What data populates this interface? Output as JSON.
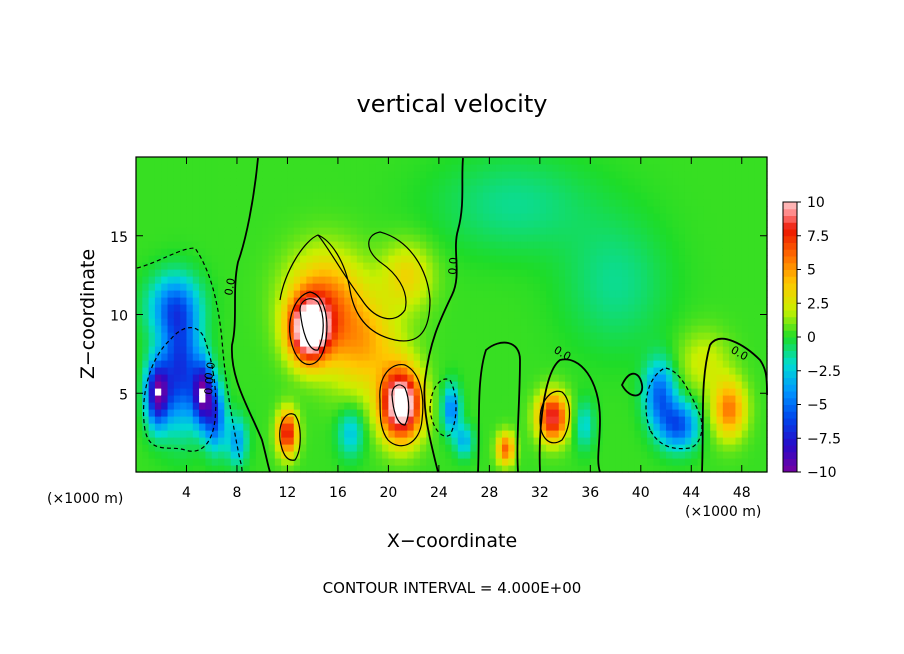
{
  "title": "vertical velocity",
  "footer": "CONTOUR INTERVAL = 4.000E+00",
  "chart_data": {
    "type": "heatmap",
    "title": "vertical velocity",
    "xlabel": "X−coordinate",
    "ylabel": "Z−coordinate",
    "x_unit_left": "(×1000 m)",
    "x_unit_right": "(×1000 m)",
    "xlim": [
      0,
      50
    ],
    "ylim": [
      0,
      20
    ],
    "xticks": [
      4,
      8,
      12,
      16,
      20,
      24,
      28,
      32,
      36,
      40,
      44,
      48
    ],
    "xtick_labels": [
      "4",
      "8",
      "12",
      "16",
      "20",
      "24",
      "28",
      "32",
      "36",
      "40",
      "44",
      "48"
    ],
    "yticks": [
      5,
      10,
      15
    ],
    "ytick_labels": [
      "5",
      "10",
      "15"
    ],
    "colorbar": {
      "min": -10,
      "max": 10,
      "ticks": [
        10,
        7.5,
        5,
        2.5,
        0,
        -2.5,
        -5,
        -7.5,
        -10
      ],
      "tick_labels": [
        "10",
        "7.5",
        "5",
        "2.5",
        "0",
        "−2.5",
        "−5",
        "−7.5",
        "−10"
      ]
    },
    "contour_interval": 4.0,
    "contour_labels": [
      "0.0",
      "0.0",
      "0.0",
      "0.0",
      "0.0",
      "0.0"
    ],
    "features": [
      {
        "x": 1.7,
        "z": 5.0,
        "w": -9.5,
        "sx": 0.9,
        "sz": 2.0
      },
      {
        "x": 3.5,
        "z": 6.5,
        "w": -7.0,
        "sx": 1.5,
        "sz": 3.5
      },
      {
        "x": 5.3,
        "z": 5.0,
        "w": -9.0,
        "sx": 0.8,
        "sz": 2.0
      },
      {
        "x": 6.3,
        "z": 3.5,
        "w": -6.0,
        "sx": 0.8,
        "sz": 2.0
      },
      {
        "x": 3.0,
        "z": 10.5,
        "w": -5.0,
        "sx": 2.0,
        "sz": 2.0
      },
      {
        "x": 8.0,
        "z": 2.0,
        "w": -4.0,
        "sx": 0.8,
        "sz": 1.5
      },
      {
        "x": 12.0,
        "z": 2.5,
        "w": 8.0,
        "sx": 0.8,
        "sz": 1.4
      },
      {
        "x": 13.7,
        "z": 9.0,
        "w": 11.0,
        "sx": 1.6,
        "sz": 2.0
      },
      {
        "x": 15.0,
        "z": 11.0,
        "w": 5.0,
        "sx": 3.0,
        "sz": 3.0
      },
      {
        "x": 18.0,
        "z": 8.0,
        "w": 4.0,
        "sx": 3.0,
        "sz": 3.0
      },
      {
        "x": 21.0,
        "z": 4.3,
        "w": 12.0,
        "sx": 1.6,
        "sz": 2.2
      },
      {
        "x": 21.5,
        "z": 12.5,
        "w": 3.0,
        "sx": 2.0,
        "sz": 2.0
      },
      {
        "x": 17.0,
        "z": 2.5,
        "w": -3.0,
        "sx": 1.0,
        "sz": 1.5
      },
      {
        "x": 25.0,
        "z": 4.0,
        "w": -5.0,
        "sx": 0.7,
        "sz": 1.5
      },
      {
        "x": 26.0,
        "z": 2.0,
        "w": -3.5,
        "sx": 0.7,
        "sz": 1.0
      },
      {
        "x": 29.3,
        "z": 1.5,
        "w": 6.0,
        "sx": 0.7,
        "sz": 1.0
      },
      {
        "x": 33.0,
        "z": 3.5,
        "w": 8.5,
        "sx": 1.2,
        "sz": 1.5
      },
      {
        "x": 35.5,
        "z": 3.0,
        "w": -2.5,
        "sx": 0.8,
        "sz": 1.5
      },
      {
        "x": 41.5,
        "z": 5.0,
        "w": -5.5,
        "sx": 1.2,
        "sz": 2.0
      },
      {
        "x": 43.0,
        "z": 3.0,
        "w": -6.0,
        "sx": 1.5,
        "sz": 1.5
      },
      {
        "x": 47.0,
        "z": 4.0,
        "w": 5.5,
        "sx": 1.3,
        "sz": 1.8
      },
      {
        "x": 45.0,
        "z": 7.0,
        "w": 2.0,
        "sx": 2.0,
        "sz": 2.0
      },
      {
        "x": 30.0,
        "z": 17.0,
        "w": -1.5,
        "sx": 6.0,
        "sz": 3.0
      },
      {
        "x": 38.0,
        "z": 12.0,
        "w": -1.5,
        "sx": 4.0,
        "sz": 4.0
      }
    ]
  }
}
